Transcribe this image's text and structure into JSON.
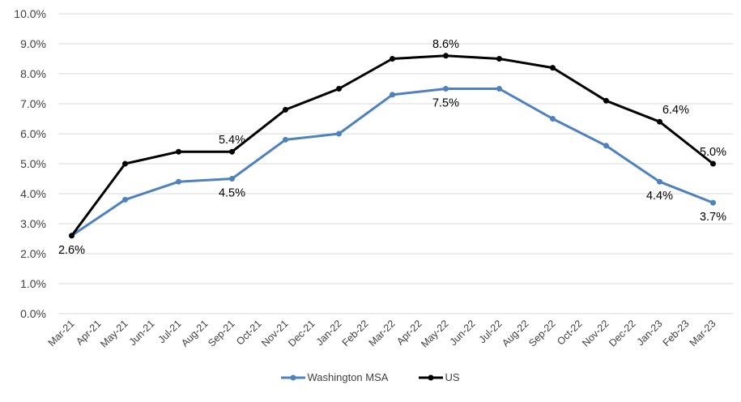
{
  "chart_data": {
    "type": "line",
    "title": "",
    "xlabel": "",
    "ylabel": "",
    "ylim": [
      0,
      10
    ],
    "y_ticks": [
      "0.0%",
      "1.0%",
      "2.0%",
      "3.0%",
      "4.0%",
      "5.0%",
      "6.0%",
      "7.0%",
      "8.0%",
      "9.0%",
      "10.0%"
    ],
    "grid": true,
    "legend_position": "bottom",
    "categories": [
      "Mar-21",
      "Apr-21",
      "May-21",
      "Jun-21",
      "Jul-21",
      "Aug-21",
      "Sep-21",
      "Oct-21",
      "Nov-21",
      "Dec-21",
      "Jan-22",
      "Feb-22",
      "Mar-22",
      "Apr-22",
      "May-22",
      "Jun-22",
      "Jul-22",
      "Aug-22",
      "Sep-22",
      "Oct-22",
      "Nov-22",
      "Dec-22",
      "Jan-23",
      "Feb-23",
      "Mar-23"
    ],
    "series": [
      {
        "name": "Washington MSA",
        "color": "#4f81bd",
        "values": [
          2.6,
          null,
          3.8,
          null,
          4.4,
          null,
          4.5,
          null,
          5.8,
          null,
          6.0,
          null,
          7.3,
          null,
          7.5,
          null,
          7.5,
          null,
          6.5,
          null,
          5.6,
          null,
          4.4,
          null,
          3.7
        ]
      },
      {
        "name": "US",
        "color": "#000000",
        "values": [
          2.6,
          null,
          5.0,
          null,
          5.4,
          null,
          5.4,
          null,
          6.8,
          null,
          7.5,
          null,
          8.5,
          null,
          8.6,
          null,
          8.5,
          null,
          8.2,
          null,
          7.1,
          null,
          6.4,
          null,
          5.0
        ]
      }
    ],
    "annotations": [
      {
        "series": 1,
        "category": "Mar-21",
        "text": "2.6%",
        "pos": "below"
      },
      {
        "series": 1,
        "category": "Sep-21",
        "text": "5.4%",
        "pos": "above"
      },
      {
        "series": 0,
        "category": "Sep-21",
        "text": "4.5%",
        "pos": "below"
      },
      {
        "series": 1,
        "category": "May-22",
        "text": "8.6%",
        "pos": "above"
      },
      {
        "series": 0,
        "category": "May-22",
        "text": "7.5%",
        "pos": "below"
      },
      {
        "series": 1,
        "category": "Jan-23",
        "text": "6.4%",
        "pos": "aboveright"
      },
      {
        "series": 0,
        "category": "Jan-23",
        "text": "4.4%",
        "pos": "below"
      },
      {
        "series": 1,
        "category": "Mar-23",
        "text": "5.0%",
        "pos": "above"
      },
      {
        "series": 0,
        "category": "Mar-23",
        "text": "3.7%",
        "pos": "below"
      }
    ]
  }
}
